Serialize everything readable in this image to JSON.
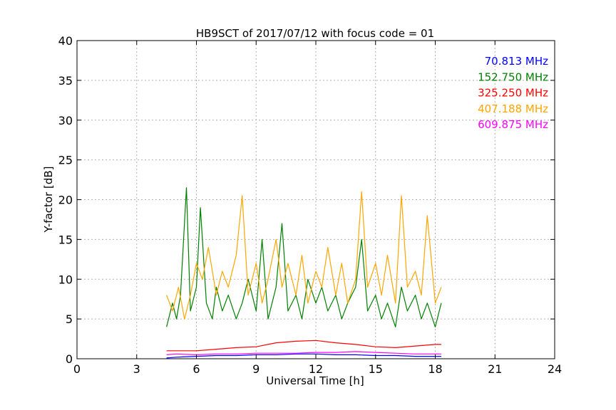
{
  "chart_data": {
    "type": "line",
    "title": "HB9SCT of 2017/07/12 with focus code = 01",
    "xlabel": "Universal Time [h]",
    "ylabel": "Y-factor [dB]",
    "xlim": [
      0,
      24
    ],
    "ylim": [
      0,
      40
    ],
    "xticks": [
      0,
      3,
      6,
      9,
      12,
      15,
      18,
      21,
      24
    ],
    "yticks": [
      0,
      5,
      10,
      15,
      20,
      25,
      30,
      35,
      40
    ],
    "grid": true,
    "legend_position": "top-right",
    "series": [
      {
        "name": "70.813 MHz",
        "color": "#0000ff",
        "x": [
          4.5,
          5.0,
          6.0,
          7.0,
          8.0,
          9.0,
          10.0,
          11.0,
          12.0,
          13.0,
          14.0,
          15.0,
          16.0,
          17.0,
          18.0,
          18.3
        ],
        "y": [
          0.1,
          0.2,
          0.3,
          0.4,
          0.4,
          0.5,
          0.5,
          0.6,
          0.6,
          0.5,
          0.5,
          0.4,
          0.4,
          0.3,
          0.3,
          0.3
        ]
      },
      {
        "name": "152.750 MHz",
        "color": "#008000",
        "x": [
          4.5,
          4.8,
          5.0,
          5.2,
          5.5,
          5.7,
          6.0,
          6.2,
          6.5,
          6.8,
          7.0,
          7.3,
          7.6,
          8.0,
          8.3,
          8.6,
          9.0,
          9.3,
          9.6,
          10.0,
          10.3,
          10.6,
          11.0,
          11.3,
          11.6,
          12.0,
          12.3,
          12.6,
          13.0,
          13.3,
          13.6,
          14.0,
          14.3,
          14.6,
          15.0,
          15.3,
          15.6,
          16.0,
          16.3,
          16.6,
          17.0,
          17.3,
          17.6,
          18.0,
          18.3
        ],
        "y": [
          4.0,
          7.0,
          5.0,
          8.0,
          21.5,
          6.0,
          9.0,
          19.0,
          7.0,
          5.0,
          9.0,
          6.0,
          8.0,
          5.0,
          7.0,
          10.0,
          6.0,
          15.0,
          5.0,
          9.0,
          17.0,
          6.0,
          8.0,
          5.0,
          10.0,
          7.0,
          9.0,
          6.0,
          8.0,
          5.0,
          7.0,
          9.0,
          15.0,
          6.0,
          8.0,
          5.0,
          7.0,
          4.0,
          9.0,
          6.0,
          8.0,
          5.0,
          7.0,
          4.0,
          7.0
        ]
      },
      {
        "name": "325.250 MHz",
        "color": "#ff0000",
        "x": [
          4.5,
          5.0,
          6.0,
          7.0,
          8.0,
          9.0,
          10.0,
          11.0,
          12.0,
          13.0,
          14.0,
          15.0,
          16.0,
          17.0,
          18.0,
          18.3
        ],
        "y": [
          1.0,
          1.0,
          1.0,
          1.2,
          1.4,
          1.5,
          2.0,
          2.2,
          2.3,
          2.0,
          1.8,
          1.5,
          1.4,
          1.6,
          1.8,
          1.8
        ]
      },
      {
        "name": "407.188 MHz",
        "color": "#ffa500",
        "x": [
          4.5,
          4.8,
          5.1,
          5.4,
          5.7,
          6.0,
          6.3,
          6.6,
          7.0,
          7.3,
          7.6,
          8.0,
          8.3,
          8.6,
          9.0,
          9.3,
          9.6,
          10.0,
          10.3,
          10.6,
          11.0,
          11.3,
          11.6,
          12.0,
          12.3,
          12.6,
          13.0,
          13.3,
          13.6,
          14.0,
          14.3,
          14.6,
          15.0,
          15.3,
          15.6,
          16.0,
          16.3,
          16.6,
          17.0,
          17.3,
          17.6,
          18.0,
          18.3
        ],
        "y": [
          8.0,
          6.0,
          9.0,
          5.0,
          8.0,
          12.0,
          10.0,
          14.0,
          8.0,
          11.0,
          9.0,
          13.0,
          20.5,
          8.0,
          12.0,
          7.0,
          10.0,
          15.0,
          9.0,
          12.0,
          8.0,
          13.0,
          7.0,
          11.0,
          9.0,
          14.0,
          8.0,
          12.0,
          7.0,
          10.0,
          21.0,
          9.0,
          12.0,
          8.0,
          13.0,
          7.0,
          20.5,
          9.0,
          11.0,
          8.0,
          18.0,
          7.0,
          9.0
        ]
      },
      {
        "name": "609.875 MHz",
        "color": "#ff00ff",
        "x": [
          4.5,
          5.0,
          6.0,
          7.0,
          8.0,
          9.0,
          10.0,
          11.0,
          12.0,
          13.0,
          14.0,
          15.0,
          16.0,
          17.0,
          18.0,
          18.3
        ],
        "y": [
          0.5,
          0.6,
          0.5,
          0.6,
          0.6,
          0.7,
          0.7,
          0.7,
          0.8,
          0.8,
          0.9,
          0.8,
          0.7,
          0.6,
          0.6,
          0.6
        ]
      }
    ]
  }
}
